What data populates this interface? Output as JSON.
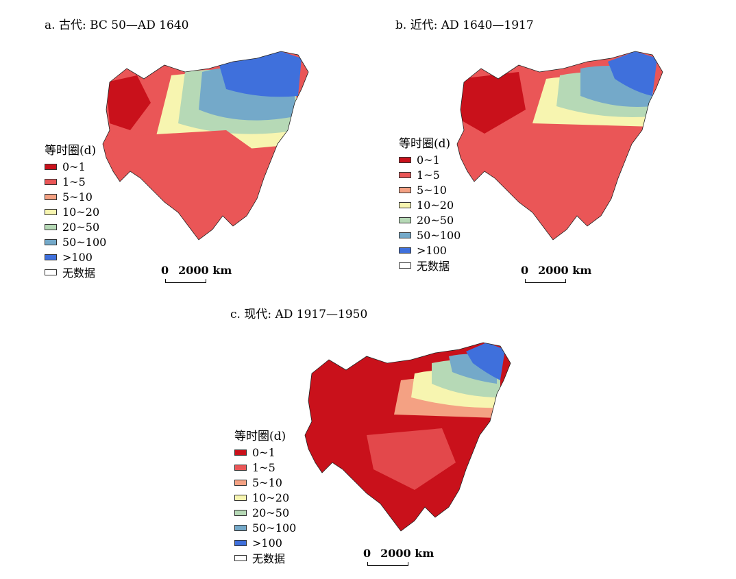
{
  "legend": {
    "title": "等时圈(d)",
    "classes": [
      {
        "label": "0~1",
        "color": "#c9111b"
      },
      {
        "label": "1~5",
        "color": "#ea5657"
      },
      {
        "label": "5~10",
        "color": "#f4a183"
      },
      {
        "label": "10~20",
        "color": "#f7f5b0"
      },
      {
        "label": "20~50",
        "color": "#b6d9b6"
      },
      {
        "label": "50~100",
        "color": "#74a9c9"
      },
      {
        "label": ">100",
        "color": "#3f70dc"
      },
      {
        "label": "无数据",
        "color": "#ffffff"
      }
    ]
  },
  "scale": {
    "zero": "0",
    "distance": "2000 km"
  },
  "panels": [
    {
      "id": "a",
      "title": "a. 古代: BC 50—AD 1640"
    },
    {
      "id": "b",
      "title": "b. 近代: AD 1640—1917"
    },
    {
      "id": "c",
      "title": "c. 现代: AD 1917—1950"
    }
  ]
}
